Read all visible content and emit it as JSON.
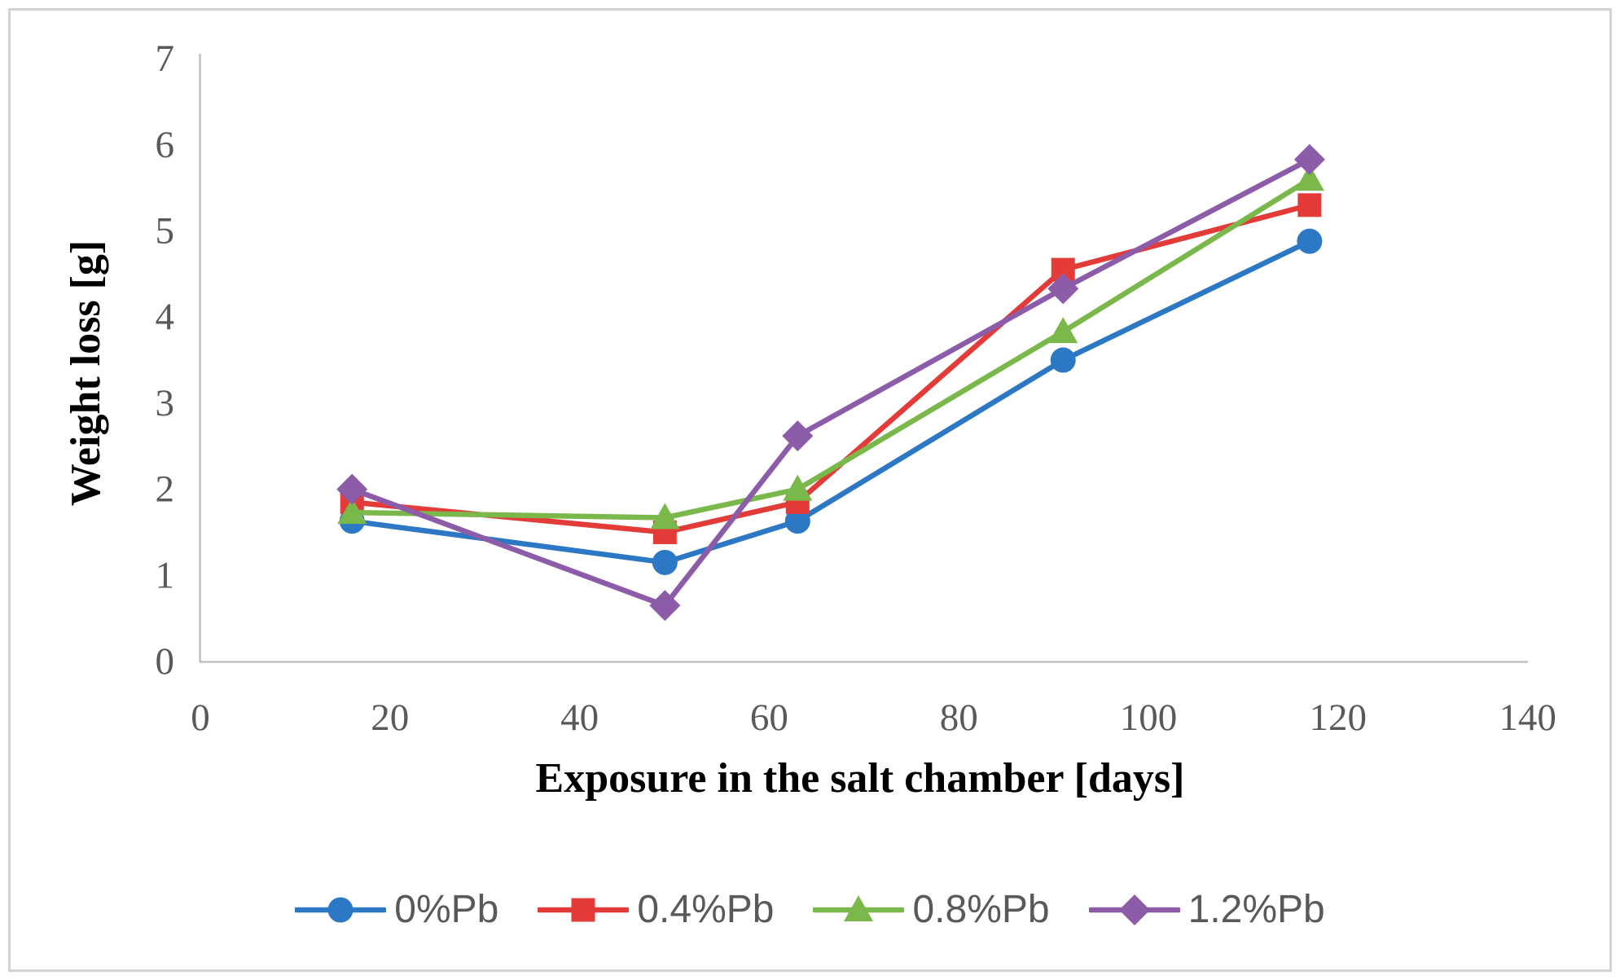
{
  "figure": {
    "background": "#FFFFFF",
    "border_color": "#D3D3D3"
  },
  "chart_data": {
    "type": "line",
    "title": "",
    "xlabel": "Exposure in the salt chamber [days]",
    "ylabel": "Weight loss [g]",
    "x": [
      16,
      49,
      63,
      91,
      117
    ],
    "series": [
      {
        "name": "0%Pb",
        "marker": "circle",
        "color": "#2C78C4",
        "values": [
          1.63,
          1.15,
          1.63,
          3.5,
          4.88
        ]
      },
      {
        "name": "0.4%Pb",
        "marker": "square",
        "color": "#E23B38",
        "values": [
          1.85,
          1.5,
          1.85,
          4.55,
          5.3
        ]
      },
      {
        "name": "0.8%Pb",
        "marker": "triangle",
        "color": "#7BB84B",
        "values": [
          1.73,
          1.67,
          2.0,
          3.83,
          5.6
        ]
      },
      {
        "name": "1.2%Pb",
        "marker": "diamond",
        "color": "#8D5CA9",
        "values": [
          2.0,
          0.65,
          2.62,
          4.33,
          5.83
        ]
      }
    ],
    "xlim": [
      0,
      140
    ],
    "ylim": [
      0,
      7
    ],
    "x_ticks": [
      0,
      20,
      40,
      60,
      80,
      100,
      120,
      140
    ],
    "y_ticks": [
      0,
      1,
      2,
      3,
      4,
      5,
      6,
      7
    ],
    "grid": false,
    "legend_position": "bottom",
    "axis_line_color": "#C0C0C0",
    "tick_label_color": "#595959",
    "axis_title_color": "#000000",
    "legend_text_color": "#595959"
  }
}
